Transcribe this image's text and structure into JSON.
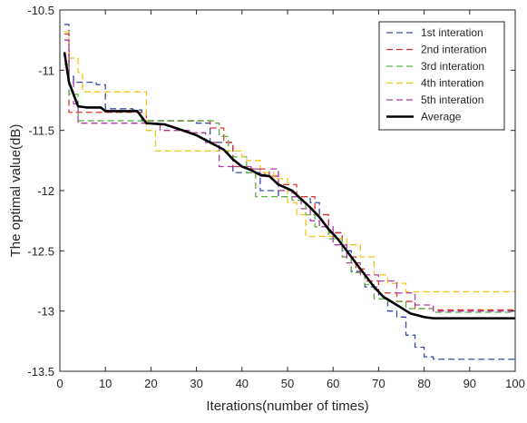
{
  "chart_data": {
    "type": "line",
    "title": "",
    "xlabel": "Iterations(number of times)",
    "ylabel": "The optimal value(dB)",
    "xlim": [
      0,
      100
    ],
    "ylim": [
      -13.5,
      -10.5
    ],
    "xticks": [
      0,
      10,
      20,
      30,
      40,
      50,
      60,
      70,
      80,
      90,
      100
    ],
    "yticks": [
      -10.5,
      -11,
      -11.5,
      -12,
      -12.5,
      -13,
      -13.5
    ],
    "xtick_labels": [
      "0",
      "10",
      "20",
      "30",
      "40",
      "50",
      "60",
      "70",
      "80",
      "90",
      "100"
    ],
    "ytick_labels": [
      "-10.5",
      "-11",
      "-11.5",
      "-12",
      "-12.5",
      "-13",
      "-13.5"
    ],
    "grid": false,
    "legend_position": "top-right",
    "series": [
      {
        "name": "1st interation",
        "color": "#3a4ca8",
        "style": "dashed",
        "step": true,
        "points": [
          [
            1,
            -10.62
          ],
          [
            2,
            -11.05
          ],
          [
            3,
            -11.1
          ],
          [
            8,
            -11.12
          ],
          [
            10,
            -11.32
          ],
          [
            16,
            -11.33
          ],
          [
            18,
            -11.42
          ],
          [
            30,
            -11.44
          ],
          [
            33,
            -11.6
          ],
          [
            38,
            -11.85
          ],
          [
            44,
            -12.0
          ],
          [
            48,
            -12.05
          ],
          [
            52,
            -12.05
          ],
          [
            55,
            -12.1
          ],
          [
            57,
            -12.2
          ],
          [
            59,
            -12.35
          ],
          [
            62,
            -12.5
          ],
          [
            64,
            -12.67
          ],
          [
            67,
            -12.8
          ],
          [
            70,
            -12.9
          ],
          [
            72,
            -13.0
          ],
          [
            74,
            -13.05
          ],
          [
            76,
            -13.2
          ],
          [
            78,
            -13.3
          ],
          [
            80,
            -13.38
          ],
          [
            82,
            -13.4
          ],
          [
            100,
            -13.4
          ]
        ]
      },
      {
        "name": "2nd interation",
        "color": "#e0302a",
        "style": "dashed",
        "step": true,
        "points": [
          [
            1,
            -10.7
          ],
          [
            2,
            -11.35
          ],
          [
            5,
            -11.35
          ],
          [
            18,
            -11.35
          ],
          [
            19,
            -11.42
          ],
          [
            30,
            -11.42
          ],
          [
            33,
            -11.48
          ],
          [
            36,
            -11.6
          ],
          [
            38,
            -11.8
          ],
          [
            42,
            -11.82
          ],
          [
            45,
            -11.88
          ],
          [
            48,
            -11.95
          ],
          [
            52,
            -12.05
          ],
          [
            56,
            -12.2
          ],
          [
            59,
            -12.35
          ],
          [
            62,
            -12.55
          ],
          [
            65,
            -12.65
          ],
          [
            67,
            -12.75
          ],
          [
            70,
            -12.85
          ],
          [
            74,
            -12.92
          ],
          [
            78,
            -12.98
          ],
          [
            82,
            -12.99
          ],
          [
            100,
            -12.99
          ]
        ]
      },
      {
        "name": "3rd interation",
        "color": "#5cb043",
        "style": "dashed",
        "step": true,
        "points": [
          [
            1,
            -10.95
          ],
          [
            2,
            -11.2
          ],
          [
            3,
            -11.2
          ],
          [
            4,
            -11.42
          ],
          [
            20,
            -11.42
          ],
          [
            34,
            -11.44
          ],
          [
            35,
            -11.55
          ],
          [
            37,
            -11.72
          ],
          [
            41,
            -11.85
          ],
          [
            43,
            -12.05
          ],
          [
            48,
            -12.05
          ],
          [
            51,
            -12.08
          ],
          [
            54,
            -12.2
          ],
          [
            56,
            -12.3
          ],
          [
            59,
            -12.4
          ],
          [
            62,
            -12.55
          ],
          [
            64,
            -12.68
          ],
          [
            67,
            -12.78
          ],
          [
            69,
            -12.9
          ],
          [
            72,
            -12.92
          ],
          [
            76,
            -12.98
          ],
          [
            82,
            -13.01
          ],
          [
            100,
            -13.01
          ]
        ]
      },
      {
        "name": "4th interation",
        "color": "#f0c419",
        "style": "dashed",
        "step": true,
        "points": [
          [
            1,
            -10.68
          ],
          [
            2,
            -10.9
          ],
          [
            4,
            -11.02
          ],
          [
            5,
            -11.18
          ],
          [
            17,
            -11.18
          ],
          [
            19,
            -11.5
          ],
          [
            21,
            -11.67
          ],
          [
            26,
            -11.67
          ],
          [
            38,
            -11.67
          ],
          [
            40,
            -11.72
          ],
          [
            41,
            -11.75
          ],
          [
            44,
            -11.85
          ],
          [
            47,
            -11.9
          ],
          [
            50,
            -12.1
          ],
          [
            52,
            -12.2
          ],
          [
            54,
            -12.38
          ],
          [
            58,
            -12.38
          ],
          [
            60,
            -12.4
          ],
          [
            63,
            -12.45
          ],
          [
            66,
            -12.55
          ],
          [
            69,
            -12.7
          ],
          [
            72,
            -12.77
          ],
          [
            76,
            -12.84
          ],
          [
            100,
            -12.84
          ]
        ]
      },
      {
        "name": "5th interation",
        "color": "#b03aa6",
        "style": "dashed",
        "step": true,
        "points": [
          [
            1,
            -10.75
          ],
          [
            2,
            -11.1
          ],
          [
            3,
            -11.28
          ],
          [
            4,
            -11.44
          ],
          [
            18,
            -11.44
          ],
          [
            22,
            -11.5
          ],
          [
            29,
            -11.52
          ],
          [
            32,
            -11.6
          ],
          [
            35,
            -11.8
          ],
          [
            42,
            -11.82
          ],
          [
            44,
            -11.88
          ],
          [
            46,
            -11.82
          ],
          [
            48,
            -12.0
          ],
          [
            51,
            -12.05
          ],
          [
            53,
            -12.15
          ],
          [
            55,
            -12.25
          ],
          [
            57,
            -12.3
          ],
          [
            60,
            -12.45
          ],
          [
            63,
            -12.6
          ],
          [
            66,
            -12.7
          ],
          [
            70,
            -12.75
          ],
          [
            74,
            -12.85
          ],
          [
            78,
            -12.95
          ],
          [
            82,
            -13.0
          ],
          [
            100,
            -13.0
          ]
        ]
      },
      {
        "name": "Average",
        "color": "#000000",
        "style": "solid",
        "step": false,
        "points": [
          [
            1,
            -10.85
          ],
          [
            2,
            -11.1
          ],
          [
            3,
            -11.2
          ],
          [
            4,
            -11.3
          ],
          [
            6,
            -11.31
          ],
          [
            9,
            -11.31
          ],
          [
            10,
            -11.34
          ],
          [
            17,
            -11.34
          ],
          [
            19,
            -11.44
          ],
          [
            23,
            -11.45
          ],
          [
            27,
            -11.5
          ],
          [
            30,
            -11.54
          ],
          [
            33,
            -11.6
          ],
          [
            36,
            -11.66
          ],
          [
            38,
            -11.74
          ],
          [
            40,
            -11.8
          ],
          [
            42,
            -11.83
          ],
          [
            44,
            -11.87
          ],
          [
            46,
            -11.88
          ],
          [
            48,
            -11.95
          ],
          [
            51,
            -12.0
          ],
          [
            53,
            -12.07
          ],
          [
            55,
            -12.14
          ],
          [
            57,
            -12.22
          ],
          [
            59,
            -12.32
          ],
          [
            61,
            -12.4
          ],
          [
            63,
            -12.5
          ],
          [
            65,
            -12.6
          ],
          [
            67,
            -12.7
          ],
          [
            69,
            -12.8
          ],
          [
            71,
            -12.88
          ],
          [
            74,
            -12.95
          ],
          [
            77,
            -13.02
          ],
          [
            80,
            -13.05
          ],
          [
            82,
            -13.06
          ],
          [
            100,
            -13.06
          ]
        ]
      }
    ]
  }
}
